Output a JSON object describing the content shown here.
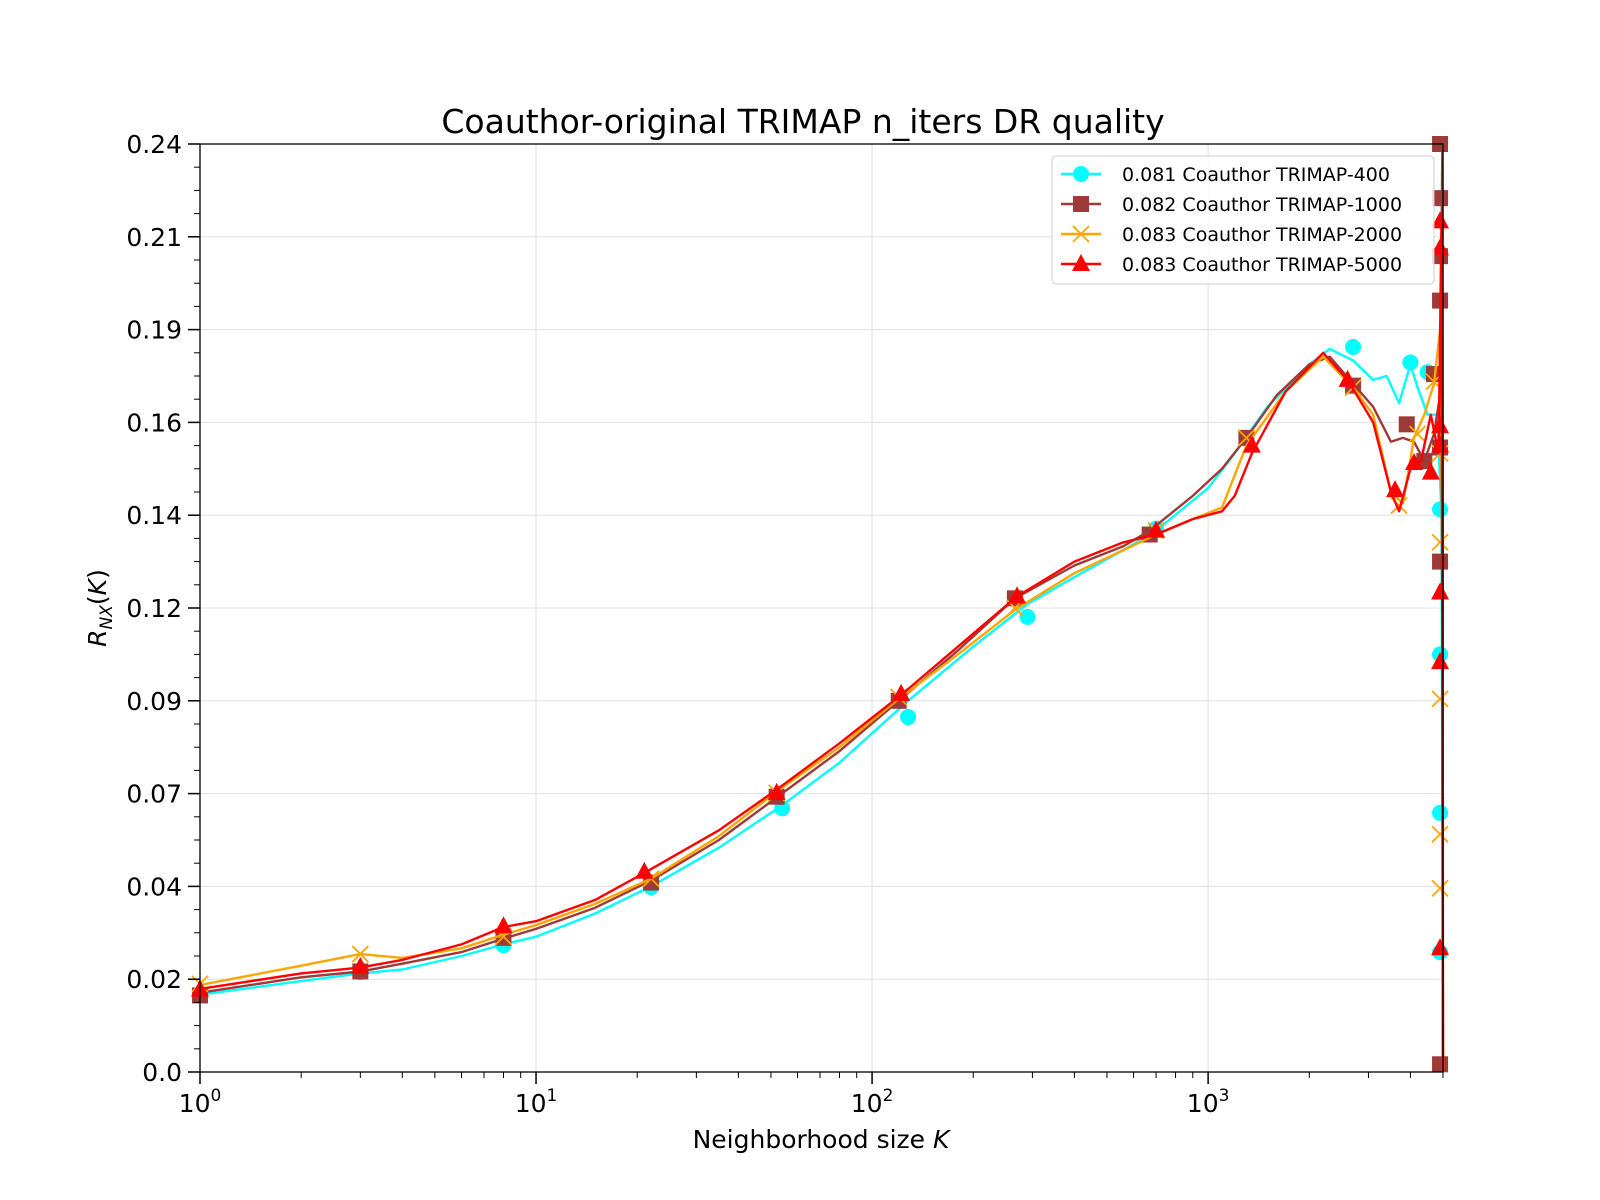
{
  "chart_data": {
    "type": "line",
    "title": "Coauthor-original TRIMAP n_iters DR quality",
    "xlabel": "Neighborhood size K",
    "ylabel": "R_NX(K)",
    "x_scale": "log",
    "xlim": [
      1,
      5000
    ],
    "ylim": [
      0.0,
      0.24
    ],
    "x_ticks": [
      {
        "value": 1,
        "base": "10",
        "exp": "0"
      },
      {
        "value": 10,
        "base": "10",
        "exp": "1"
      },
      {
        "value": 100,
        "base": "10",
        "exp": "2"
      },
      {
        "value": 1000,
        "base": "10",
        "exp": "3"
      }
    ],
    "y_ticks": [
      {
        "value": 0.0,
        "label": "0.0"
      },
      {
        "value": 0.024,
        "label": "0.02"
      },
      {
        "value": 0.048,
        "label": "0.04"
      },
      {
        "value": 0.072,
        "label": "0.07"
      },
      {
        "value": 0.096,
        "label": "0.09"
      },
      {
        "value": 0.12,
        "label": "0.12"
      },
      {
        "value": 0.144,
        "label": "0.14"
      },
      {
        "value": 0.168,
        "label": "0.16"
      },
      {
        "value": 0.192,
        "label": "0.19"
      },
      {
        "value": 0.216,
        "label": "0.21"
      },
      {
        "value": 0.24,
        "label": "0.24"
      }
    ],
    "grid": true,
    "legend_position": "top-right",
    "series": [
      {
        "name": "0.081 Coauthor TRIMAP-400",
        "color": "#00FFFF",
        "marker": "circle",
        "line": [
          [
            1,
            0.02
          ],
          [
            2,
            0.0235
          ],
          [
            3,
            0.0255
          ],
          [
            4,
            0.0265
          ],
          [
            6,
            0.03
          ],
          [
            8,
            0.033
          ],
          [
            10,
            0.035
          ],
          [
            15,
            0.041
          ],
          [
            22,
            0.048
          ],
          [
            35,
            0.058
          ],
          [
            54,
            0.069
          ],
          [
            80,
            0.08
          ],
          [
            128,
            0.096
          ],
          [
            200,
            0.11
          ],
          [
            290,
            0.121
          ],
          [
            400,
            0.128
          ],
          [
            560,
            0.135
          ],
          [
            700,
            0.14
          ],
          [
            1000,
            0.151
          ],
          [
            1200,
            0.16
          ],
          [
            1500,
            0.172
          ],
          [
            2000,
            0.183
          ],
          [
            2300,
            0.187
          ],
          [
            2700,
            0.184
          ],
          [
            3100,
            0.179
          ],
          [
            3400,
            0.18
          ],
          [
            3700,
            0.173
          ],
          [
            4000,
            0.183
          ],
          [
            4200,
            0.177
          ],
          [
            4500,
            0.17
          ],
          [
            4800,
            0.17
          ],
          [
            4950,
            0.145
          ],
          [
            5000,
            0.0
          ]
        ],
        "markers": [
          [
            1,
            0.02
          ],
          [
            3,
            0.0258
          ],
          [
            8,
            0.0328
          ],
          [
            22,
            0.0478
          ],
          [
            54,
            0.0682
          ],
          [
            128,
            0.0918
          ],
          [
            290,
            0.1177
          ],
          [
            700,
            0.1405
          ],
          [
            1300,
            0.164
          ],
          [
            2700,
            0.1875
          ],
          [
            4000,
            0.1835
          ],
          [
            4500,
            0.181
          ],
          [
            4900,
            0.1455
          ],
          [
            4900,
            0.108
          ],
          [
            4900,
            0.067
          ],
          [
            4900,
            0.031
          ]
        ]
      },
      {
        "name": "0.082 Coauthor TRIMAP-1000",
        "color": "#9E3A38",
        "marker": "square",
        "line": [
          [
            1,
            0.0205
          ],
          [
            2,
            0.0245
          ],
          [
            3,
            0.026
          ],
          [
            4,
            0.028
          ],
          [
            6,
            0.031
          ],
          [
            8,
            0.0345
          ],
          [
            10,
            0.037
          ],
          [
            15,
            0.0425
          ],
          [
            22,
            0.0495
          ],
          [
            35,
            0.06
          ],
          [
            52,
            0.071
          ],
          [
            80,
            0.083
          ],
          [
            120,
            0.096
          ],
          [
            180,
            0.109
          ],
          [
            266,
            0.1225
          ],
          [
            400,
            0.131
          ],
          [
            560,
            0.136
          ],
          [
            670,
            0.14
          ],
          [
            900,
            0.149
          ],
          [
            1100,
            0.156
          ],
          [
            1300,
            0.164
          ],
          [
            1600,
            0.175
          ],
          [
            2000,
            0.183
          ],
          [
            2300,
            0.185
          ],
          [
            2700,
            0.178
          ],
          [
            3100,
            0.172
          ],
          [
            3500,
            0.163
          ],
          [
            3800,
            0.164
          ],
          [
            4100,
            0.163
          ],
          [
            4400,
            0.158
          ],
          [
            4700,
            0.165
          ],
          [
            4900,
            0.175
          ],
          [
            4980,
            0.24
          ],
          [
            5000,
            0.0
          ]
        ],
        "markers": [
          [
            1,
            0.0198
          ],
          [
            3,
            0.026
          ],
          [
            8,
            0.0347
          ],
          [
            22,
            0.049
          ],
          [
            52,
            0.0712
          ],
          [
            120,
            0.096
          ],
          [
            266,
            0.1225
          ],
          [
            670,
            0.139
          ],
          [
            1300,
            0.164
          ],
          [
            2700,
            0.1775
          ],
          [
            3900,
            0.1675
          ],
          [
            4400,
            0.158
          ],
          [
            4700,
            0.1805
          ],
          [
            4900,
            0.24
          ],
          [
            4900,
            0.226
          ],
          [
            4900,
            0.211
          ],
          [
            4900,
            0.1995
          ],
          [
            4900,
            0.1615
          ],
          [
            4900,
            0.132
          ],
          [
            4900,
            0.002
          ]
        ]
      },
      {
        "name": "0.083 Coauthor TRIMAP-2000",
        "color": "#FFA500",
        "marker": "x",
        "line": [
          [
            1,
            0.0225
          ],
          [
            2,
            0.0275
          ],
          [
            3,
            0.0305
          ],
          [
            4,
            0.0295
          ],
          [
            6,
            0.032
          ],
          [
            8,
            0.0355
          ],
          [
            10,
            0.038
          ],
          [
            15,
            0.0435
          ],
          [
            22,
            0.05
          ],
          [
            35,
            0.061
          ],
          [
            52,
            0.0725
          ],
          [
            80,
            0.084
          ],
          [
            120,
            0.0965
          ],
          [
            180,
            0.108
          ],
          [
            266,
            0.1195
          ],
          [
            400,
            0.129
          ],
          [
            560,
            0.135
          ],
          [
            700,
            0.139
          ],
          [
            900,
            0.143
          ],
          [
            1100,
            0.146
          ],
          [
            1300,
            0.162
          ],
          [
            1700,
            0.176
          ],
          [
            2200,
            0.185
          ],
          [
            2700,
            0.177
          ],
          [
            3100,
            0.17
          ],
          [
            3500,
            0.15
          ],
          [
            3800,
            0.147
          ],
          [
            4100,
            0.164
          ],
          [
            4400,
            0.17
          ],
          [
            4700,
            0.178
          ],
          [
            4900,
            0.192
          ],
          [
            4980,
            0.13
          ],
          [
            5000,
            0.0
          ]
        ],
        "markers": [
          [
            1,
            0.0228
          ],
          [
            3,
            0.0305
          ],
          [
            8,
            0.035
          ],
          [
            22,
            0.05
          ],
          [
            52,
            0.0722
          ],
          [
            120,
            0.097
          ],
          [
            266,
            0.12
          ],
          [
            700,
            0.14
          ],
          [
            1300,
            0.164
          ],
          [
            2700,
            0.177
          ],
          [
            3700,
            0.1465
          ],
          [
            4200,
            0.165
          ],
          [
            4700,
            0.1785
          ],
          [
            4900,
            0.16
          ],
          [
            4900,
            0.137
          ],
          [
            4900,
            0.0965
          ],
          [
            4900,
            0.0615
          ],
          [
            4900,
            0.0475
          ]
        ]
      },
      {
        "name": "0.083 Coauthor TRIMAP-5000",
        "color": "#FF0000",
        "marker": "triangle",
        "line": [
          [
            1,
            0.0215
          ],
          [
            2,
            0.0255
          ],
          [
            3,
            0.027
          ],
          [
            4,
            0.029
          ],
          [
            6,
            0.033
          ],
          [
            8,
            0.0375
          ],
          [
            10,
            0.039
          ],
          [
            15,
            0.0445
          ],
          [
            21,
            0.0515
          ],
          [
            35,
            0.0625
          ],
          [
            52,
            0.073
          ],
          [
            80,
            0.085
          ],
          [
            122,
            0.0975
          ],
          [
            180,
            0.11
          ],
          [
            270,
            0.123
          ],
          [
            400,
            0.132
          ],
          [
            560,
            0.137
          ],
          [
            700,
            0.139
          ],
          [
            900,
            0.143
          ],
          [
            1100,
            0.145
          ],
          [
            1200,
            0.149
          ],
          [
            1350,
            0.16
          ],
          [
            1700,
            0.176
          ],
          [
            2200,
            0.186
          ],
          [
            2600,
            0.179
          ],
          [
            3100,
            0.168
          ],
          [
            3500,
            0.15
          ],
          [
            3700,
            0.145
          ],
          [
            4000,
            0.156
          ],
          [
            4300,
            0.158
          ],
          [
            4600,
            0.17
          ],
          [
            4850,
            0.16
          ],
          [
            4950,
            0.22
          ],
          [
            5000,
            0.0
          ]
        ],
        "markers": [
          [
            1,
            0.0213
          ],
          [
            3,
            0.0272
          ],
          [
            8,
            0.0377
          ],
          [
            21,
            0.0518
          ],
          [
            52,
            0.0722
          ],
          [
            122,
            0.0978
          ],
          [
            270,
            0.123
          ],
          [
            700,
            0.14
          ],
          [
            1350,
            0.162
          ],
          [
            2600,
            0.179
          ],
          [
            3600,
            0.1505
          ],
          [
            4100,
            0.1575
          ],
          [
            4600,
            0.155
          ],
          [
            4900,
            0.167
          ],
          [
            4900,
            0.162
          ],
          [
            4900,
            0.213
          ],
          [
            4900,
            0.22
          ],
          [
            4900,
            0.124
          ],
          [
            4900,
            0.106
          ],
          [
            4900,
            0.032
          ]
        ]
      }
    ]
  }
}
